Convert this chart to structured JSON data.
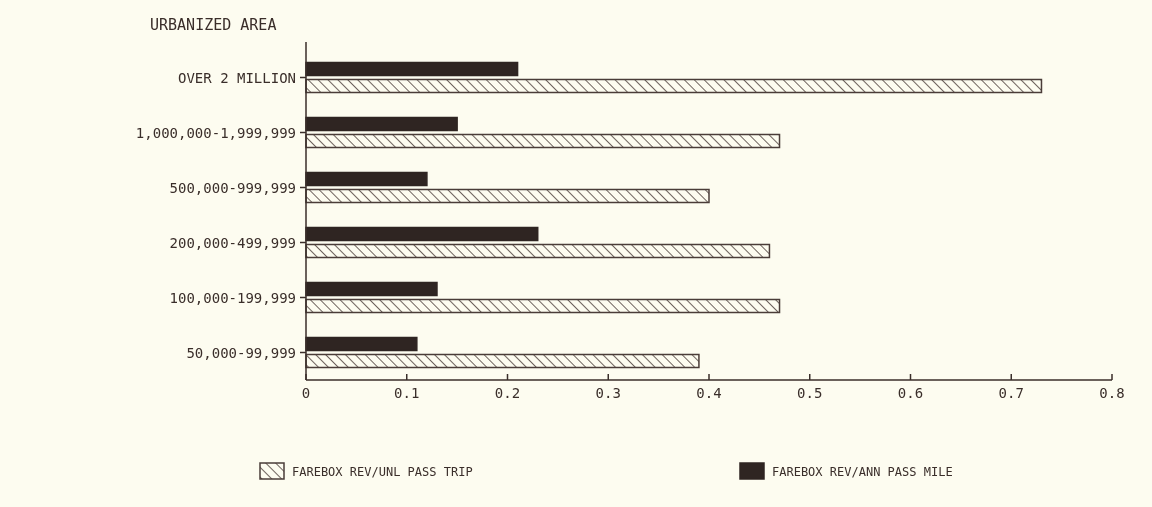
{
  "chart_data": {
    "type": "bar",
    "orientation": "horizontal",
    "ylabel": "URBANIZED AREA",
    "categories": [
      "OVER 2 MILLION",
      "1,000,000-1,999,999",
      "500,000-999,999",
      "200,000-499,999",
      "100,000-199,999",
      "50,000-99,999"
    ],
    "series": [
      {
        "name": "FAREBOX REV/UNL PASS TRIP",
        "color": "#4a3c38",
        "values": [
          0.73,
          0.47,
          0.4,
          0.46,
          0.47,
          0.39
        ]
      },
      {
        "name": "FAREBOX REV/ANN PASS MILE",
        "color": "#2f2522",
        "values": [
          0.21,
          0.15,
          0.12,
          0.23,
          0.13,
          0.11
        ]
      }
    ],
    "xlim": [
      0,
      0.8
    ],
    "xticks": [
      {
        "value": 0,
        "label": "0"
      },
      {
        "value": 0.1,
        "label": "0.1"
      },
      {
        "value": 0.2,
        "label": "0.2"
      },
      {
        "value": 0.3,
        "label": "0.3"
      },
      {
        "value": 0.4,
        "label": "0.4"
      },
      {
        "value": 0.5,
        "label": "0.5"
      },
      {
        "value": 0.6,
        "label": "0.6"
      },
      {
        "value": 0.7,
        "label": "0.7"
      },
      {
        "value": 0.8,
        "label": "0.8"
      }
    ],
    "grid": false,
    "legend": "bottom"
  }
}
